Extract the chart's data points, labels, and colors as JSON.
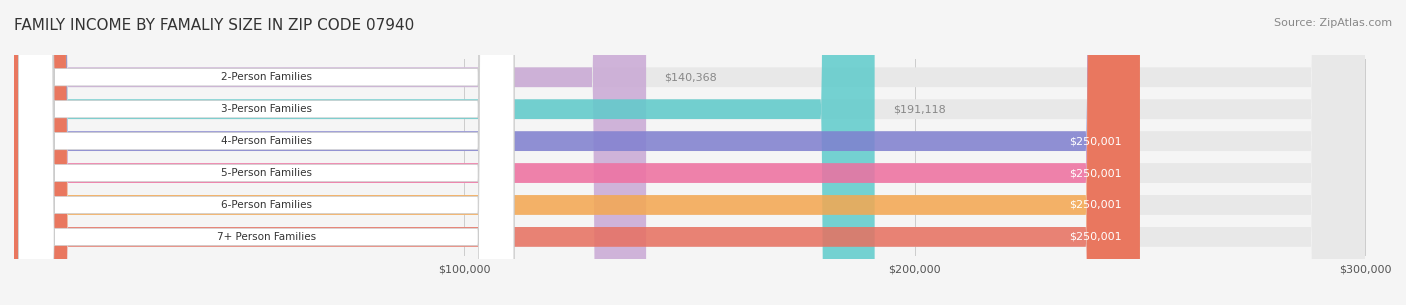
{
  "title": "FAMILY INCOME BY FAMALIY SIZE IN ZIP CODE 07940",
  "source": "Source: ZipAtlas.com",
  "categories": [
    "2-Person Families",
    "3-Person Families",
    "4-Person Families",
    "5-Person Families",
    "6-Person Families",
    "7+ Person Families"
  ],
  "values": [
    140368,
    191118,
    250001,
    250001,
    250001,
    250001
  ],
  "bar_colors": [
    "#c9a8d4",
    "#5ecbcb",
    "#8080d0",
    "#f06fa0",
    "#f5a850",
    "#e87060"
  ],
  "value_labels": [
    "$140,368",
    "$191,118",
    "$250,001",
    "$250,001",
    "$250,001",
    "$250,001"
  ],
  "xmax": 300000,
  "x_ticks": [
    100000,
    200000,
    300000
  ],
  "x_tick_labels": [
    "$100,000",
    "$200,000",
    "$300,000"
  ],
  "background_color": "#f5f5f5",
  "bar_bg_color": "#e8e8e8",
  "title_fontsize": 11,
  "source_fontsize": 8,
  "label_fontsize": 8,
  "value_inside_color": "#ffffff",
  "value_outside_color": "#888888",
  "bar_height": 0.62,
  "label_box_color": "#ffffff"
}
